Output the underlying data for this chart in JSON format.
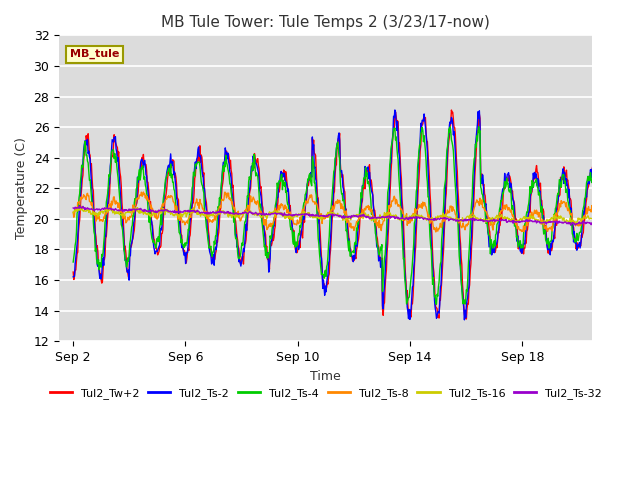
{
  "title": "MB Tule Tower: Tule Temps 2 (3/23/17-now)",
  "xlabel": "Time",
  "ylabel": "Temperature (C)",
  "ylim": [
    12,
    32
  ],
  "yticks": [
    12,
    14,
    16,
    18,
    20,
    22,
    24,
    26,
    28,
    30,
    32
  ],
  "bg_color": "#dcdcdc",
  "fig_color": "#ffffff",
  "legend_label": "MB_tule",
  "legend_bg": "#ffffcc",
  "legend_border": "#999900",
  "legend_text_color": "#990000",
  "series_colors": {
    "Tul2_Tw+2": "#ff0000",
    "Tul2_Ts-2": "#0000ff",
    "Tul2_Ts-4": "#00cc00",
    "Tul2_Ts-8": "#ff8800",
    "Tul2_Ts-16": "#cccc00",
    "Tul2_Ts-32": "#9900cc"
  },
  "xtick_labels": [
    "Sep 2",
    "Sep 6",
    "Sep 10",
    "Sep 14",
    "Sep 18"
  ],
  "xtick_positions": [
    1,
    5,
    9,
    13,
    17
  ],
  "x_range": [
    0.5,
    19.5
  ],
  "figsize": [
    6.4,
    4.8
  ],
  "dpi": 100
}
